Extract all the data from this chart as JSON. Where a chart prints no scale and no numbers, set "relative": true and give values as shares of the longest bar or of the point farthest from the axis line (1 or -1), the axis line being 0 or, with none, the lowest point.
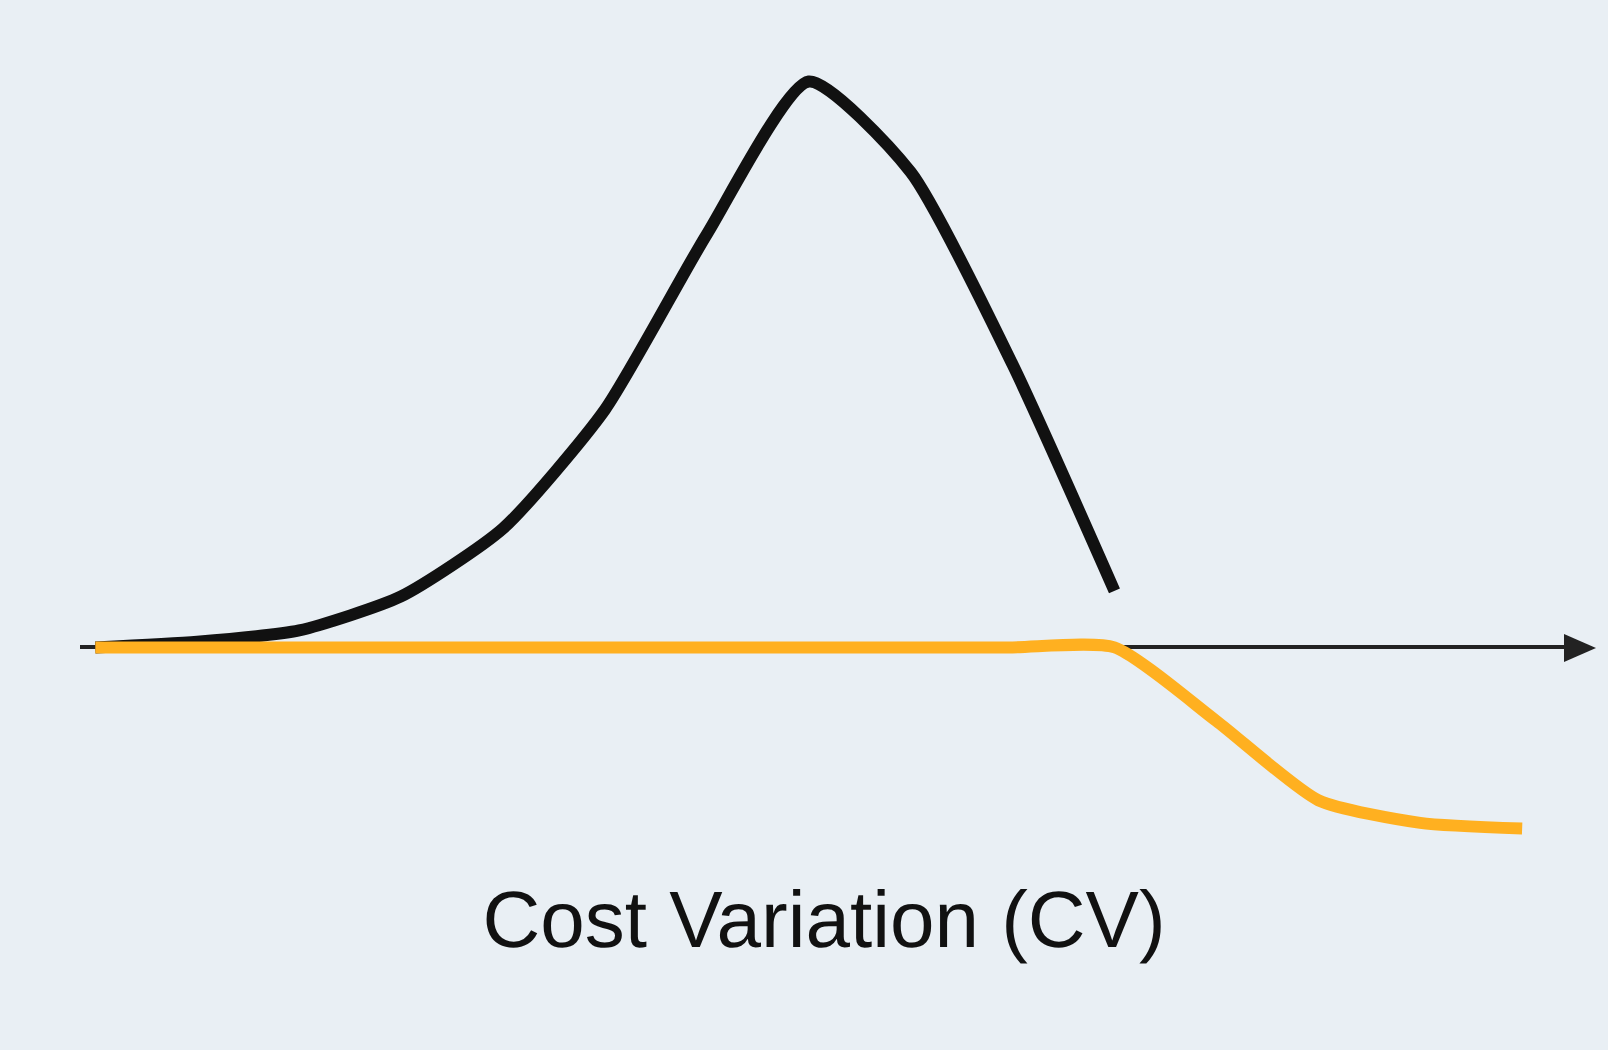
{
  "chart_data": {
    "type": "line",
    "relative": true,
    "xlabel": "Cost Variation (CV)",
    "categories": [
      null,
      null,
      null,
      null,
      null,
      null,
      null,
      null,
      null,
      null,
      null,
      null,
      null,
      null,
      null
    ],
    "series": [
      {
        "color": "#111111",
        "values": [
          0,
          0.01,
          0.03,
          0.09,
          0.21,
          0.42,
          0.73,
          1,
          0.84,
          0.5,
          0.1,
          null,
          null,
          null,
          null
        ]
      },
      {
        "color": "#ffb020",
        "values": [
          0,
          0,
          0,
          0,
          0,
          0,
          0,
          0,
          0,
          0,
          0,
          -0.13,
          -0.27,
          -0.31,
          -0.32
        ]
      }
    ]
  }
}
